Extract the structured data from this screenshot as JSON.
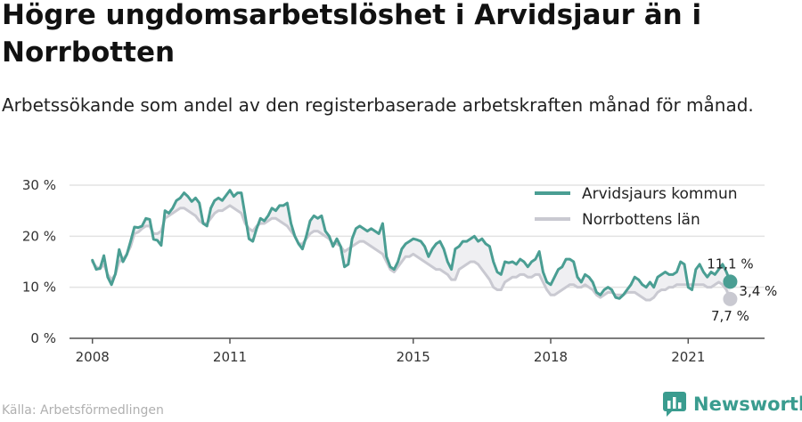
{
  "title": "Högre ungdomsarbetslöshet i Arvidsjaur än i Norrbotten",
  "subtitle": "Arbetssökande som andel av den registerbaserade arbetskraften månad för månad.",
  "source": "Källa: Arbetsförmedlingen",
  "brand": "Newsworthy",
  "colors": {
    "kommun": "#4a9e93",
    "lan": "#c9c9d1",
    "fill": "#efeff2",
    "grid": "#e3e3e3",
    "brand": "#3a9c8f"
  },
  "chart_data": {
    "type": "line",
    "x_start": "2008-01",
    "x_end": "2021-12",
    "xlim": [
      "2007-07",
      "2022-09"
    ],
    "x_ticks": [
      {
        "value": "2008-01",
        "label": "2008"
      },
      {
        "value": "2011-01",
        "label": "2011"
      },
      {
        "value": "2015-01",
        "label": "2015"
      },
      {
        "value": "2018-01",
        "label": "2018"
      },
      {
        "value": "2021-01",
        "label": "2021"
      }
    ],
    "ylim": [
      0,
      30
    ],
    "y_ticks": [
      {
        "value": 0,
        "label": "0 %"
      },
      {
        "value": 10,
        "label": "10 %"
      },
      {
        "value": 20,
        "label": "20 %"
      },
      {
        "value": 30,
        "label": "30 %"
      }
    ],
    "grid": true,
    "legend_position": "top-right",
    "series": [
      {
        "name": "Arvidsjaurs kommun",
        "values": [
          15.3,
          13.5,
          13.7,
          16.2,
          12.0,
          10.5,
          12.6,
          17.4,
          15.0,
          16.4,
          19.0,
          21.8,
          21.7,
          22.0,
          23.5,
          23.3,
          19.4,
          19.2,
          18.2,
          25.0,
          24.5,
          25.5,
          27.0,
          27.5,
          28.5,
          27.8,
          26.8,
          27.5,
          26.5,
          22.5,
          22.0,
          25.5,
          27.0,
          27.5,
          27.0,
          28.0,
          29.0,
          27.8,
          28.5,
          28.5,
          24.0,
          19.5,
          19.0,
          21.5,
          23.5,
          23.0,
          24.0,
          25.5,
          25.0,
          26.0,
          26.0,
          26.5,
          22.5,
          20.0,
          18.5,
          17.5,
          20.0,
          23.0,
          24.0,
          23.5,
          24.0,
          21.0,
          20.0,
          18.0,
          19.5,
          18.0,
          14.0,
          14.5,
          19.5,
          21.5,
          22.0,
          21.5,
          21.0,
          21.5,
          21.0,
          20.5,
          22.5,
          16.0,
          14.0,
          13.5,
          15.0,
          17.5,
          18.5,
          19.0,
          19.5,
          19.3,
          19.0,
          18.0,
          16.0,
          17.5,
          18.5,
          19.0,
          17.5,
          15.0,
          13.5,
          17.5,
          18.0,
          19.0,
          19.0,
          19.5,
          20.0,
          19.0,
          19.5,
          18.5,
          18.0,
          15.0,
          13.0,
          12.5,
          15.0,
          14.8,
          15.0,
          14.5,
          15.5,
          15.0,
          14.0,
          15.0,
          15.5,
          17.0,
          13.0,
          11.0,
          10.5,
          12.0,
          13.5,
          14.0,
          15.5,
          15.5,
          15.0,
          12.0,
          11.0,
          12.5,
          12.0,
          11.0,
          9.0,
          8.5,
          9.5,
          10.0,
          9.5,
          8.0,
          7.8,
          8.5,
          9.5,
          10.5,
          12.0,
          11.5,
          10.5,
          10.0,
          11.0,
          10.0,
          12.0,
          12.5,
          13.0,
          12.5,
          12.5,
          13.0,
          15.0,
          14.5,
          10.0,
          9.5,
          13.5,
          14.5,
          13.0,
          12.0,
          13.0,
          12.5,
          13.5,
          14.5,
          13.0,
          11.1
        ]
      },
      {
        "name": "Norrbottens län",
        "values": [
          15.0,
          14.0,
          13.6,
          14.5,
          12.5,
          11.5,
          12.5,
          15.0,
          15.5,
          16.5,
          18.0,
          20.5,
          20.8,
          21.5,
          22.0,
          22.0,
          20.5,
          20.5,
          21.0,
          23.5,
          24.0,
          24.5,
          25.0,
          25.5,
          25.5,
          25.0,
          24.5,
          24.0,
          23.0,
          22.5,
          22.5,
          23.5,
          24.5,
          25.0,
          25.0,
          25.5,
          26.0,
          25.5,
          25.0,
          24.5,
          22.5,
          21.5,
          21.0,
          22.0,
          22.5,
          22.5,
          23.0,
          23.5,
          23.5,
          23.0,
          22.5,
          22.0,
          21.0,
          20.0,
          18.5,
          18.5,
          19.5,
          20.5,
          21.0,
          21.0,
          20.5,
          20.0,
          19.5,
          18.5,
          18.5,
          18.0,
          17.0,
          17.5,
          18.0,
          18.5,
          19.0,
          19.0,
          18.5,
          18.0,
          17.5,
          17.0,
          16.5,
          15.0,
          13.5,
          13.0,
          14.0,
          15.0,
          16.0,
          16.0,
          16.5,
          16.0,
          15.5,
          15.0,
          14.5,
          14.0,
          13.5,
          13.5,
          13.0,
          12.5,
          11.5,
          11.5,
          13.5,
          14.0,
          14.5,
          15.0,
          15.0,
          14.5,
          13.5,
          12.5,
          11.5,
          10.0,
          9.5,
          9.5,
          11.0,
          11.5,
          12.0,
          12.0,
          12.5,
          12.5,
          12.0,
          12.0,
          12.5,
          12.5,
          11.0,
          9.5,
          8.5,
          8.5,
          9.0,
          9.5,
          10.0,
          10.5,
          10.5,
          10.0,
          10.0,
          10.5,
          10.0,
          9.5,
          8.5,
          8.0,
          8.5,
          9.0,
          9.0,
          8.5,
          8.5,
          8.5,
          9.0,
          9.0,
          9.0,
          8.5,
          8.0,
          7.5,
          7.5,
          8.0,
          9.0,
          9.5,
          9.5,
          10.0,
          10.0,
          10.5,
          10.5,
          10.5,
          10.5,
          10.5,
          10.5,
          10.5,
          10.5,
          10.0,
          10.0,
          10.5,
          11.0,
          10.5,
          9.5,
          7.7
        ]
      }
    ],
    "end_labels": [
      "11,1 %",
      "3,4 %",
      "7,7 %"
    ]
  }
}
